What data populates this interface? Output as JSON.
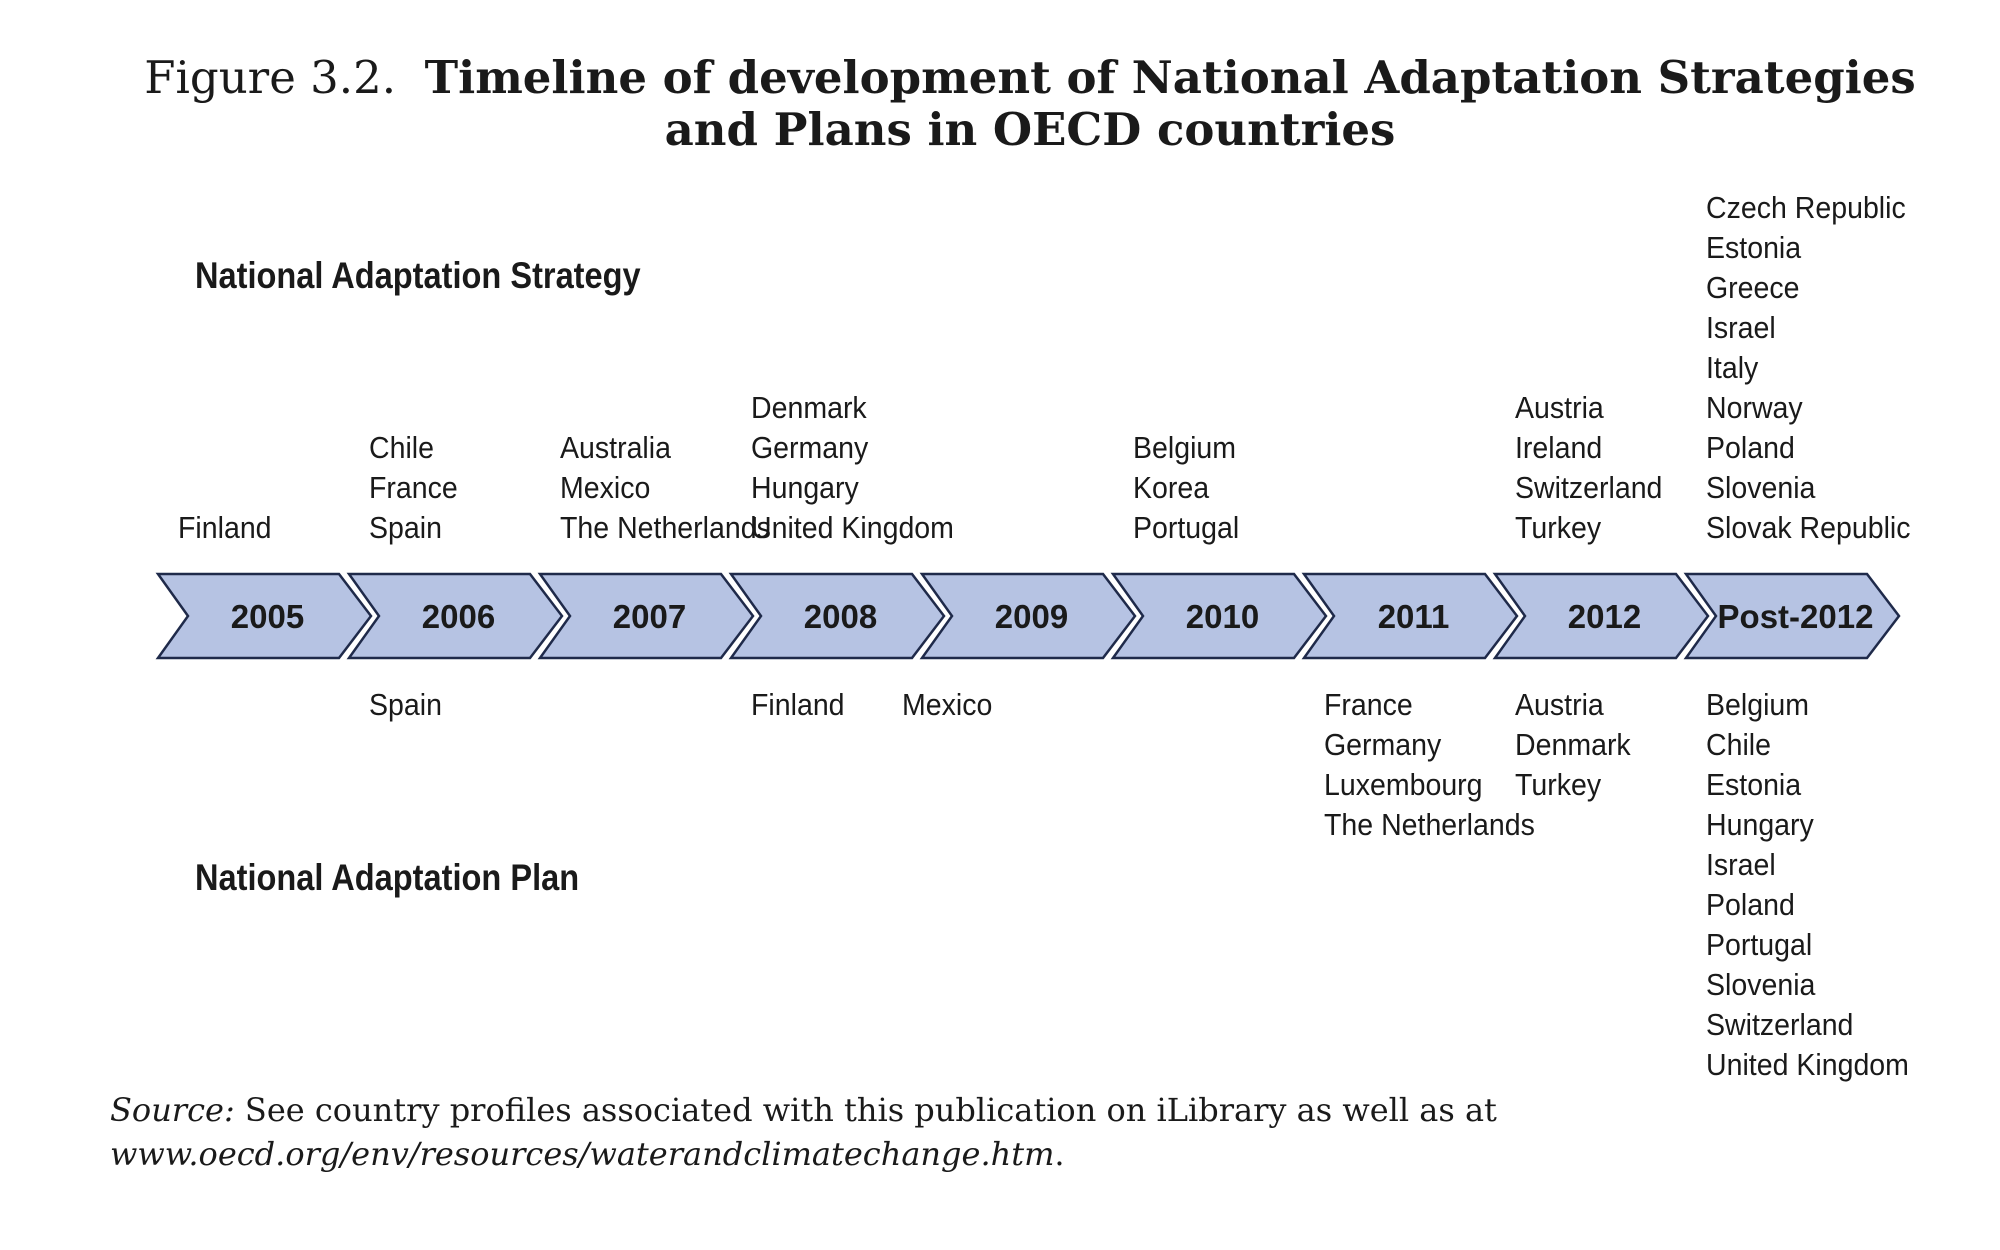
{
  "title": {
    "prefix": "Figure 3.2.",
    "line1": "Timeline of development of National Adaptation Strategies",
    "line2": "and Plans in OECD countries"
  },
  "labels": {
    "strategy": "National Adaptation Strategy",
    "plan": "National Adaptation Plan"
  },
  "timeline": {
    "fill_color": "#b6c3e3",
    "stroke_color": "#1f2a4a",
    "years": [
      "2005",
      "2006",
      "2007",
      "2008",
      "2009",
      "2010",
      "2011",
      "2012",
      "Post-2012"
    ]
  },
  "strategies": [
    {
      "year": "2005",
      "countries": [
        "Finland"
      ]
    },
    {
      "year": "2006",
      "countries": [
        "Chile",
        "France",
        "Spain"
      ]
    },
    {
      "year": "2007",
      "countries": [
        "Australia",
        "Mexico",
        "The Netherlands"
      ]
    },
    {
      "year": "2008",
      "countries": [
        "Denmark",
        "Germany",
        "Hungary",
        "United Kingdom"
      ]
    },
    {
      "year": "2009",
      "countries": []
    },
    {
      "year": "2010",
      "countries": [
        "Belgium",
        "Korea",
        "Portugal"
      ]
    },
    {
      "year": "2011",
      "countries": []
    },
    {
      "year": "2012",
      "countries": [
        "Austria",
        "Ireland",
        "Switzerland",
        "Turkey"
      ]
    },
    {
      "year": "Post-2012",
      "countries": [
        "Czech Republic",
        "Estonia",
        "Greece",
        "Israel",
        "Italy",
        "Norway",
        "Poland",
        "Slovenia",
        "Slovak Republic"
      ]
    }
  ],
  "plans": [
    {
      "year": "2005",
      "countries": []
    },
    {
      "year": "2006",
      "countries": [
        "Spain"
      ]
    },
    {
      "year": "2007",
      "countries": []
    },
    {
      "year": "2008",
      "countries": [
        "Finland"
      ]
    },
    {
      "year": "2009",
      "countries": [
        "Mexico"
      ]
    },
    {
      "year": "2010",
      "countries": []
    },
    {
      "year": "2011",
      "countries": [
        "France",
        "Germany",
        "Luxembourg",
        "The Netherlands"
      ]
    },
    {
      "year": "2012",
      "countries": [
        "Austria",
        "Denmark",
        "Turkey"
      ]
    },
    {
      "year": "Post-2012",
      "countries": [
        "Belgium",
        "Chile",
        "Estonia",
        "Hungary",
        "Israel",
        "Poland",
        "Portugal",
        "Slovenia",
        "Switzerland",
        "United Kingdom"
      ]
    }
  ],
  "source": {
    "label": "Source:",
    "text": " See country profiles associated with this publication on iLibrary as well as at ",
    "url": "www.oecd.org/env/resources/waterandclimatechange.htm",
    "end": "."
  }
}
